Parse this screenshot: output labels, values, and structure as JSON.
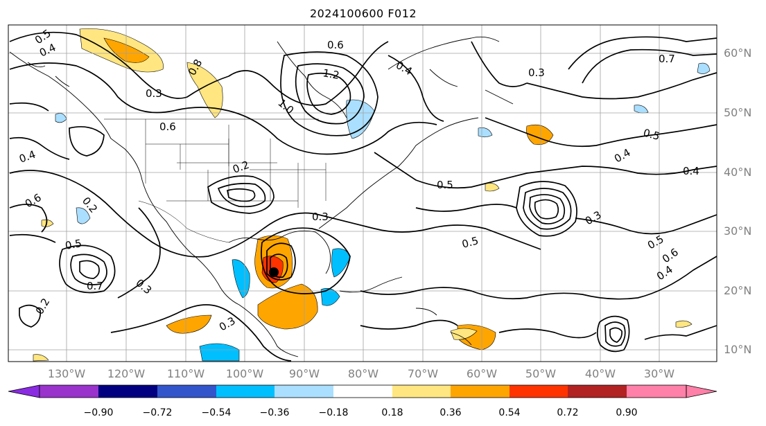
{
  "title": "2024100600 F012",
  "lon_labels": [
    "130°W",
    "120°W",
    "110°W",
    "100°W",
    "90°W",
    "80°W",
    "70°W",
    "60°W",
    "50°W",
    "40°W",
    "30°W"
  ],
  "lat_labels": [
    "60°N",
    "50°N",
    "40°N",
    "30°N",
    "20°N",
    "10°N"
  ],
  "contour_labels": [
    "0.5",
    "0.4",
    "0.6",
    "1.2",
    "0.4",
    "0.3",
    "1.0",
    "0.7",
    "0.8",
    "0.3",
    "0.6",
    "0.5",
    "0.5",
    "0.4",
    "0.4",
    "0.2",
    "0.3",
    "0.5",
    "0.4",
    "0.6",
    "0.2",
    "0.3",
    "0.5",
    "0.3",
    "0.5",
    "0.6",
    "0.4",
    "0.2",
    "0.3",
    "0.7"
  ],
  "colorbar": {
    "ticks": [
      "−0.90",
      "−0.72",
      "−0.54",
      "−0.36",
      "−0.18",
      "0.18",
      "0.36",
      "0.54",
      "0.72",
      "0.90"
    ],
    "colors": [
      "#9933cc",
      "#000080",
      "#3355cc",
      "#00bfff",
      "#aadfff",
      "#ffffff",
      "#ffe680",
      "#ffa500",
      "#ff3300",
      "#b22222",
      "#ff80a8"
    ],
    "under_color": "#8a2be2",
    "over_color": "#ff80a8"
  }
}
